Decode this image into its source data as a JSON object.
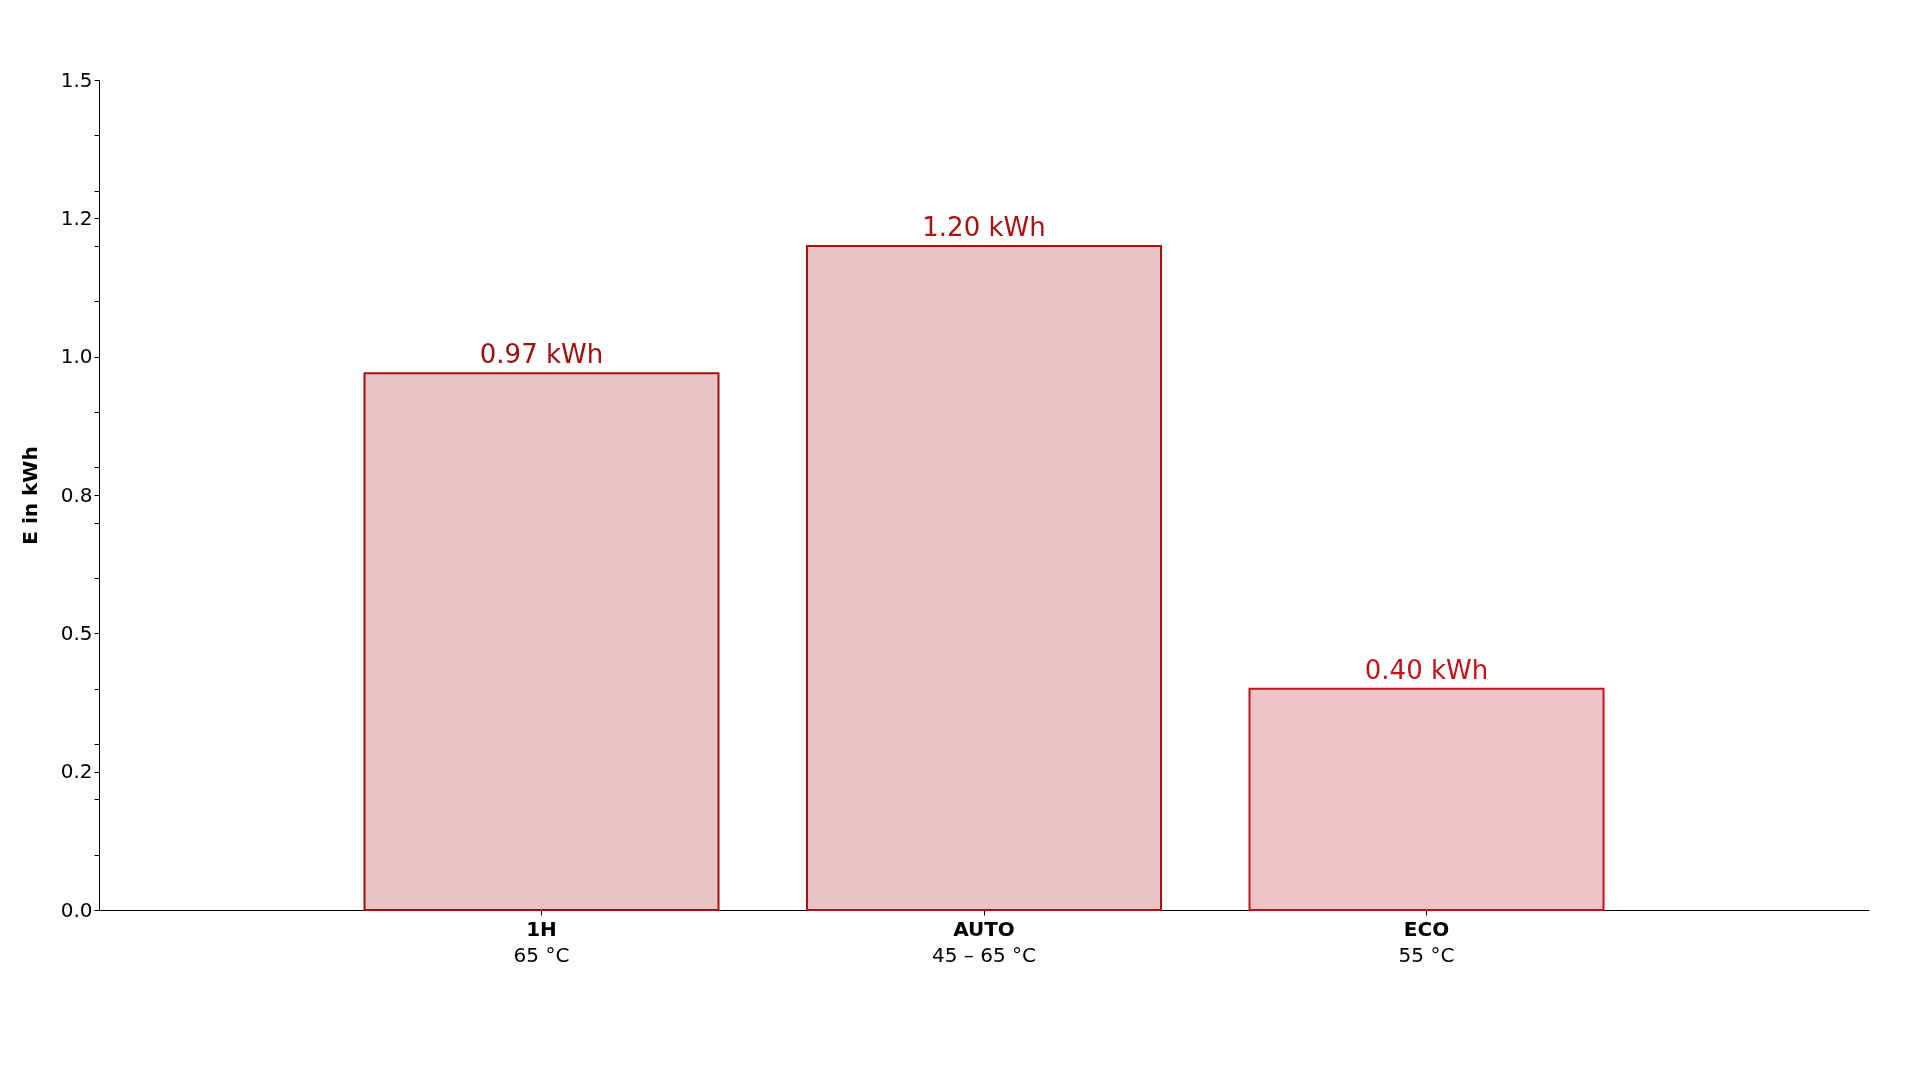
{
  "chart_data": {
    "type": "bar",
    "ylabel": "E in kWh",
    "categories": [
      "1H\n65 °C",
      "AUTO\n45 – 65 °C",
      "ECO\n55 °C"
    ],
    "values": [
      0.97,
      1.2,
      0.4
    ],
    "colors": [
      "#a01010",
      "#a81212",
      "#c0141c"
    ],
    "value_labels": [
      "0.97 kWh",
      "1.20 kWh",
      "0.40 kWh"
    ],
    "ylim": [
      0,
      1.5
    ],
    "yticks": [
      {
        "value": 0,
        "label": "0.0"
      },
      {
        "value": 0.1,
        "label": null
      },
      {
        "value": 0.2,
        "label": null
      },
      {
        "value": 0.25,
        "label": "0.2"
      },
      {
        "value": 0.3,
        "label": null
      },
      {
        "value": 0.4,
        "label": null
      },
      0.5,
      {
        "value": 0.6,
        "label": null
      },
      {
        "value": 0.7,
        "label": null
      },
      {
        "value": 0.75,
        "label": "0.8"
      },
      {
        "value": 0.8,
        "label": null
      },
      {
        "value": 0.9,
        "label": null
      },
      {
        "value": 1.0,
        "label": "1.0"
      },
      {
        "value": 1.1,
        "label": null
      },
      {
        "value": 1.2,
        "label": null
      },
      {
        "value": 1.25,
        "label": "1.2"
      },
      {
        "value": 1.3,
        "label": null
      },
      {
        "value": 1.4,
        "label": null
      },
      1.5
    ],
    "grid": false
  }
}
